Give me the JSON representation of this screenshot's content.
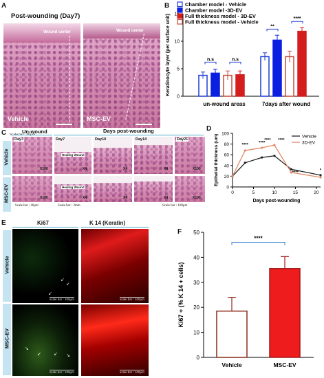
{
  "panelA": {
    "letter": "A",
    "title": "Post-wounding (Day7)",
    "left_image_label": "Vehicle",
    "right_image_label": "MSC-EV",
    "wound_center_label": "Wound center",
    "scale_bar": "Scale bar : 40μm"
  },
  "panelB": {
    "letter": "B",
    "legend": [
      "Chamber model - Vehicle",
      "Chamber model -3D-EV",
      "Full thickness model - 3D-EV",
      "Full thickness model - Vehicle"
    ],
    "significance": [
      "n.s",
      "n.s",
      "**",
      "****"
    ],
    "colors": {
      "vehicle_chamber": "#1e3dd6",
      "ev_chamber": "#0a1fe0",
      "ev_full": "#c81e1e",
      "vehicle_full": "#c84a3a"
    },
    "chart_data": {
      "type": "bar",
      "categories": [
        "un-wound areas",
        "7days after wound"
      ],
      "ylabel": "Keratinocyte layer (per surface unit)",
      "ylim": [
        0,
        15
      ],
      "yticks": [
        "0",
        "5",
        "10",
        "15"
      ],
      "series": [
        {
          "name": "Chamber model - Vehicle",
          "values": [
            3.8,
            7.2
          ],
          "errors": [
            0.6,
            0.7
          ]
        },
        {
          "name": "Chamber model -3D-EV",
          "values": [
            4.2,
            10.2
          ],
          "errors": [
            0.7,
            0.9
          ]
        },
        {
          "name": "Full thickness model - Vehicle",
          "values": [
            3.8,
            7.2
          ],
          "errors": [
            0.8,
            1.0
          ]
        },
        {
          "name": "Full thickness model - 3D-EV",
          "values": [
            3.9,
            11.8
          ],
          "errors": [
            0.7,
            0.7
          ]
        }
      ]
    }
  },
  "panelC": {
    "letter": "C",
    "header_unwound": "Un-wound",
    "header_days": "Days post-wounding",
    "row_labels": [
      "Vehicle",
      "MSC-EV"
    ],
    "columns": [
      "Day3",
      "Day7",
      "Day10",
      "Day14",
      "Day21"
    ],
    "healing_label": "Healing Wound",
    "magnifications": [
      "X100",
      "X4",
      "X4",
      "X4",
      "X100"
    ],
    "scale_bars": [
      "Scale bar : 40μm",
      "Scale bar : 2mm",
      "Scale bar : 100μm"
    ]
  },
  "panelD": {
    "letter": "D",
    "significance": [
      "****",
      "****",
      "****",
      "****",
      "****",
      "*"
    ],
    "chart_data": {
      "type": "line",
      "xlabel": "Days post-wounding",
      "ylabel": "Epithelial thickness (um)",
      "xlim": [
        0,
        21
      ],
      "ylim": [
        0,
        100
      ],
      "xticks": [
        "0",
        "5",
        "10",
        "15",
        "20"
      ],
      "yticks": [
        "0",
        "20",
        "40",
        "60",
        "80",
        "100"
      ],
      "x": [
        0,
        3,
        7,
        10,
        14,
        21
      ],
      "series": [
        {
          "name": "Vehicle",
          "color": "#222222",
          "values": [
            20,
            45,
            55,
            58,
            33,
            22
          ]
        },
        {
          "name": "3D-EV",
          "color": "#e08a66",
          "values": [
            20,
            68,
            73,
            78,
            27,
            18
          ]
        }
      ]
    }
  },
  "panelE": {
    "letter": "E",
    "col_headers": [
      "Ki67",
      "K 14 (Keratin)"
    ],
    "row_labels": [
      "Vehicle",
      "MSC-EV"
    ],
    "scale_bar": "scale bar : 100μm"
  },
  "panelF": {
    "letter": "F",
    "significance": "****",
    "chart_data": {
      "type": "bar",
      "categories": [
        "Vehicle",
        "MSC-EV"
      ],
      "values": [
        18.5,
        35.5
      ],
      "errors": [
        5.5,
        4.8
      ],
      "ylabel": "Ki67 + (% K 14 + cells)",
      "ylim": [
        0,
        50
      ],
      "yticks": [
        "0",
        "10",
        "20",
        "30",
        "40",
        "50"
      ],
      "colors": [
        "#ffffff",
        "#ee1c1c"
      ]
    }
  }
}
